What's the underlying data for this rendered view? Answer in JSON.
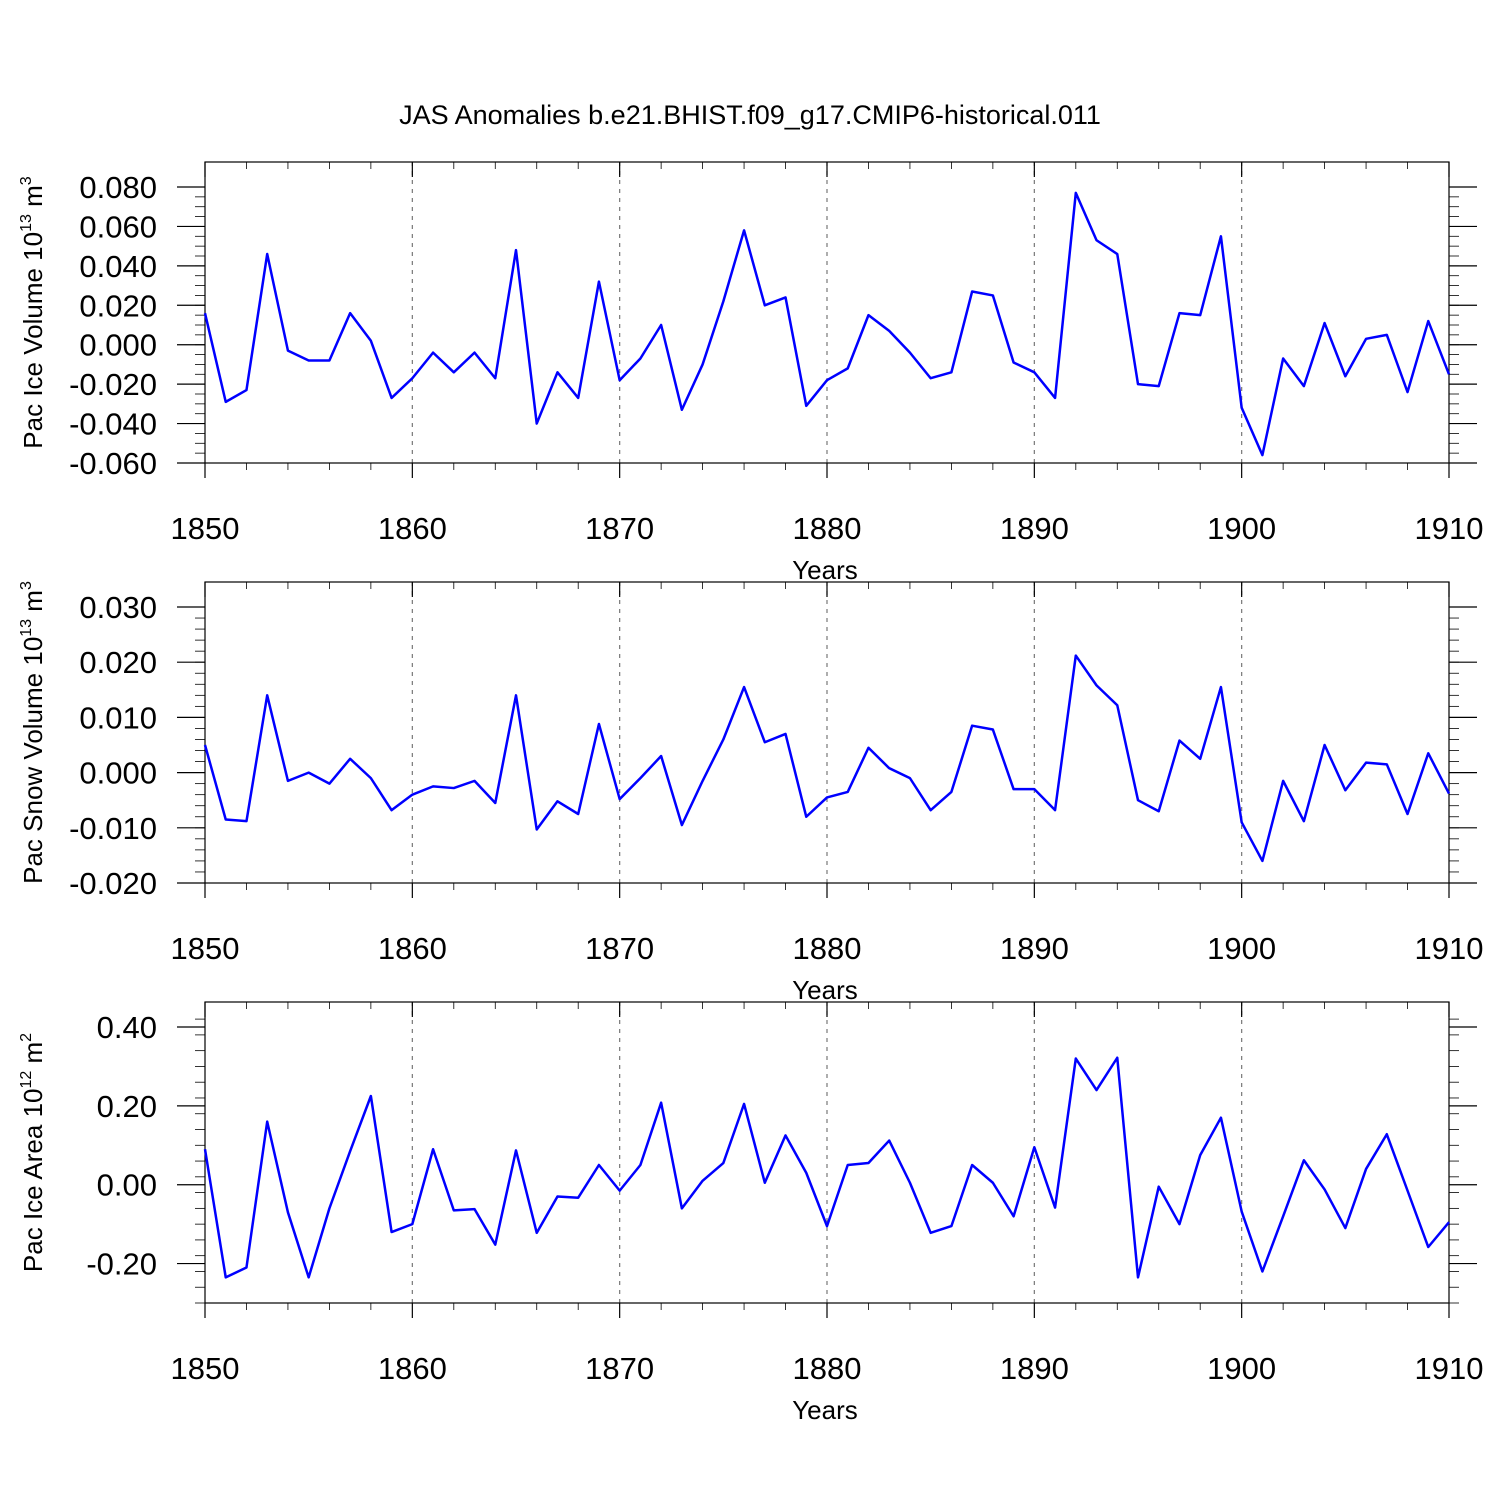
{
  "title": "JAS Anomalies b.e21.BHIST.f09_g17.CMIP6-historical.011",
  "colors": {
    "series": "#0000ff",
    "axes": "#000000",
    "grid": "#777777"
  },
  "chart_data": [
    {
      "type": "line",
      "ylabel": {
        "text": "Pac Ice Volume 10",
        "sup": "13",
        "unit": " m",
        "unit_sup": "3"
      },
      "xlabel": "Years",
      "xlim": [
        1850,
        1910
      ],
      "ylim": [
        -0.06,
        0.08
      ],
      "grid": "x-dashed",
      "x_ticks": [
        "1850",
        "1860",
        "1870",
        "1880",
        "1890",
        "1900",
        "1910"
      ],
      "y_ticks": [
        {
          "value": 0.08,
          "label": "0.080"
        },
        {
          "value": 0.06,
          "label": "0.060"
        },
        {
          "value": 0.04,
          "label": "0.040"
        },
        {
          "value": 0.02,
          "label": "0.020"
        },
        {
          "value": 0.0,
          "label": "0.000"
        },
        {
          "value": -0.02,
          "label": "-0.020"
        },
        {
          "value": -0.04,
          "label": "-0.040"
        },
        {
          "value": -0.06,
          "label": "-0.060"
        }
      ],
      "y_minor_step": 0.005,
      "x_start": 1850,
      "values": [
        0.016,
        -0.029,
        -0.023,
        0.046,
        -0.003,
        -0.008,
        -0.008,
        0.016,
        0.002,
        -0.027,
        -0.017,
        -0.004,
        -0.014,
        -0.004,
        -0.017,
        0.048,
        -0.04,
        -0.014,
        -0.027,
        0.032,
        -0.018,
        -0.007,
        0.01,
        -0.033,
        -0.01,
        0.022,
        0.058,
        0.02,
        0.024,
        -0.031,
        -0.018,
        -0.012,
        0.015,
        0.007,
        -0.004,
        -0.017,
        -0.014,
        0.027,
        0.025,
        -0.009,
        -0.014,
        -0.027,
        0.077,
        0.053,
        0.046,
        -0.02,
        -0.021,
        0.016,
        0.015,
        0.055,
        -0.032,
        -0.056,
        -0.007,
        -0.021,
        0.011,
        -0.016,
        0.003,
        0.005,
        -0.024,
        0.012,
        -0.015
      ]
    },
    {
      "type": "line",
      "ylabel": {
        "text": "Pac Snow Volume 10",
        "sup": "13",
        "unit": " m",
        "unit_sup": "3"
      },
      "xlabel": "Years",
      "xlim": [
        1850,
        1910
      ],
      "ylim": [
        -0.02,
        0.03
      ],
      "grid": "x-dashed",
      "x_ticks": [
        "1850",
        "1860",
        "1870",
        "1880",
        "1890",
        "1900",
        "1910"
      ],
      "y_ticks": [
        {
          "value": 0.03,
          "label": "0.030"
        },
        {
          "value": 0.02,
          "label": "0.020"
        },
        {
          "value": 0.01,
          "label": "0.010"
        },
        {
          "value": 0.0,
          "label": "0.000"
        },
        {
          "value": -0.01,
          "label": "-0.010"
        },
        {
          "value": -0.02,
          "label": "-0.020"
        }
      ],
      "y_minor_step": 0.002,
      "x_start": 1850,
      "values": [
        0.005,
        -0.0085,
        -0.0088,
        0.014,
        -0.0015,
        0.0,
        -0.002,
        0.0025,
        -0.001,
        -0.0068,
        -0.004,
        -0.0025,
        -0.0028,
        -0.0015,
        -0.0055,
        0.014,
        -0.0103,
        -0.0052,
        -0.0075,
        0.0088,
        -0.0048,
        -0.001,
        0.003,
        -0.0095,
        -0.0015,
        0.006,
        0.0155,
        0.0055,
        0.007,
        -0.008,
        -0.0045,
        -0.0035,
        0.0045,
        0.0008,
        -0.001,
        -0.0068,
        -0.0035,
        0.0085,
        0.0078,
        -0.003,
        -0.003,
        -0.0068,
        0.0212,
        0.0158,
        0.0122,
        -0.005,
        -0.007,
        0.0058,
        0.0025,
        0.0155,
        -0.009,
        -0.016,
        -0.0015,
        -0.0088,
        0.005,
        -0.0032,
        0.0018,
        0.0015,
        -0.0075,
        0.0035,
        -0.0038
      ]
    },
    {
      "type": "line",
      "ylabel": {
        "text": "Pac Ice Area 10",
        "sup": "12",
        "unit": " m",
        "unit_sup": "2"
      },
      "xlabel": "Years",
      "xlim": [
        1850,
        1910
      ],
      "ylim": [
        -0.3,
        0.4
      ],
      "grid": "x-dashed",
      "x_ticks": [
        "1850",
        "1860",
        "1870",
        "1880",
        "1890",
        "1900",
        "1910"
      ],
      "y_ticks": [
        {
          "value": 0.4,
          "label": "0.40"
        },
        {
          "value": 0.2,
          "label": "0.20"
        },
        {
          "value": 0.0,
          "label": "0.00"
        },
        {
          "value": -0.2,
          "label": "-0.20"
        }
      ],
      "y_minor_step": 0.04,
      "x_start": 1850,
      "values": [
        0.09,
        -0.235,
        -0.21,
        0.16,
        -0.07,
        -0.235,
        -0.06,
        0.085,
        0.225,
        -0.12,
        -0.1,
        0.09,
        -0.065,
        -0.062,
        -0.152,
        0.087,
        -0.122,
        -0.03,
        -0.033,
        0.05,
        -0.015,
        0.05,
        0.208,
        -0.06,
        0.01,
        0.055,
        0.205,
        0.005,
        0.125,
        0.03,
        -0.105,
        0.05,
        0.055,
        0.112,
        0.005,
        -0.122,
        -0.105,
        0.05,
        0.005,
        -0.08,
        0.095,
        -0.058,
        0.32,
        0.24,
        0.322,
        -0.235,
        -0.005,
        -0.1,
        0.075,
        0.17,
        -0.068,
        -0.22,
        -0.08,
        0.062,
        -0.012,
        -0.11,
        0.04,
        0.128,
        -0.015,
        -0.158,
        -0.095
      ]
    }
  ]
}
